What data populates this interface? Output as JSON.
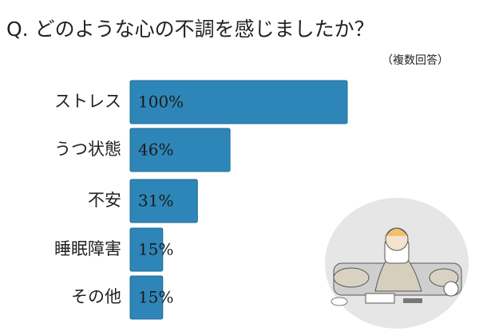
{
  "chart_data": {
    "type": "bar",
    "orientation": "horizontal",
    "title": "Q. どのような心の不調を感じましたか？",
    "subtitle": "（複数回答）",
    "categories": [
      "ストレス",
      "うつ状態",
      "不安",
      "睡眠障害",
      "その他"
    ],
    "values": [
      100,
      46,
      31,
      15,
      15
    ],
    "value_labels": [
      "100%",
      "46%",
      "31%",
      "15%",
      "15%"
    ],
    "color": "#2e86b8"
  }
}
